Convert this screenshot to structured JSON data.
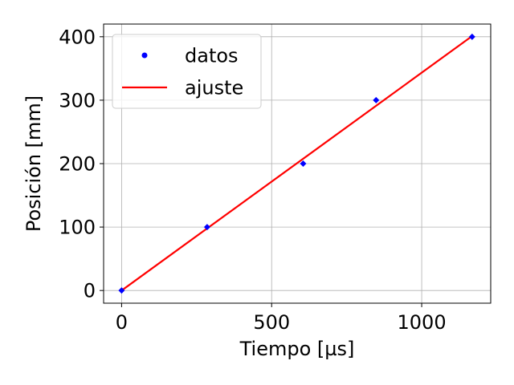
{
  "chart_data": {
    "type": "scatter",
    "xlabel": "Tiempo [µs]",
    "ylabel": "Posición [mm]",
    "xlim": [
      -60,
      1230
    ],
    "ylim": [
      -20,
      420
    ],
    "xticks": [
      0,
      500,
      1000
    ],
    "yticks": [
      0,
      100,
      200,
      300,
      400
    ],
    "grid": true,
    "legend_position": "top-left",
    "series": [
      {
        "name": "datos",
        "kind": "scatter",
        "color": "#0000ff",
        "marker": "diamond",
        "x": [
          0,
          285,
          605,
          848,
          1168
        ],
        "y": [
          0,
          100,
          200,
          300,
          400
        ]
      },
      {
        "name": "ajuste",
        "kind": "line",
        "color": "#ff0000",
        "x": [
          0,
          1168
        ],
        "y": [
          0,
          401
        ]
      }
    ]
  }
}
